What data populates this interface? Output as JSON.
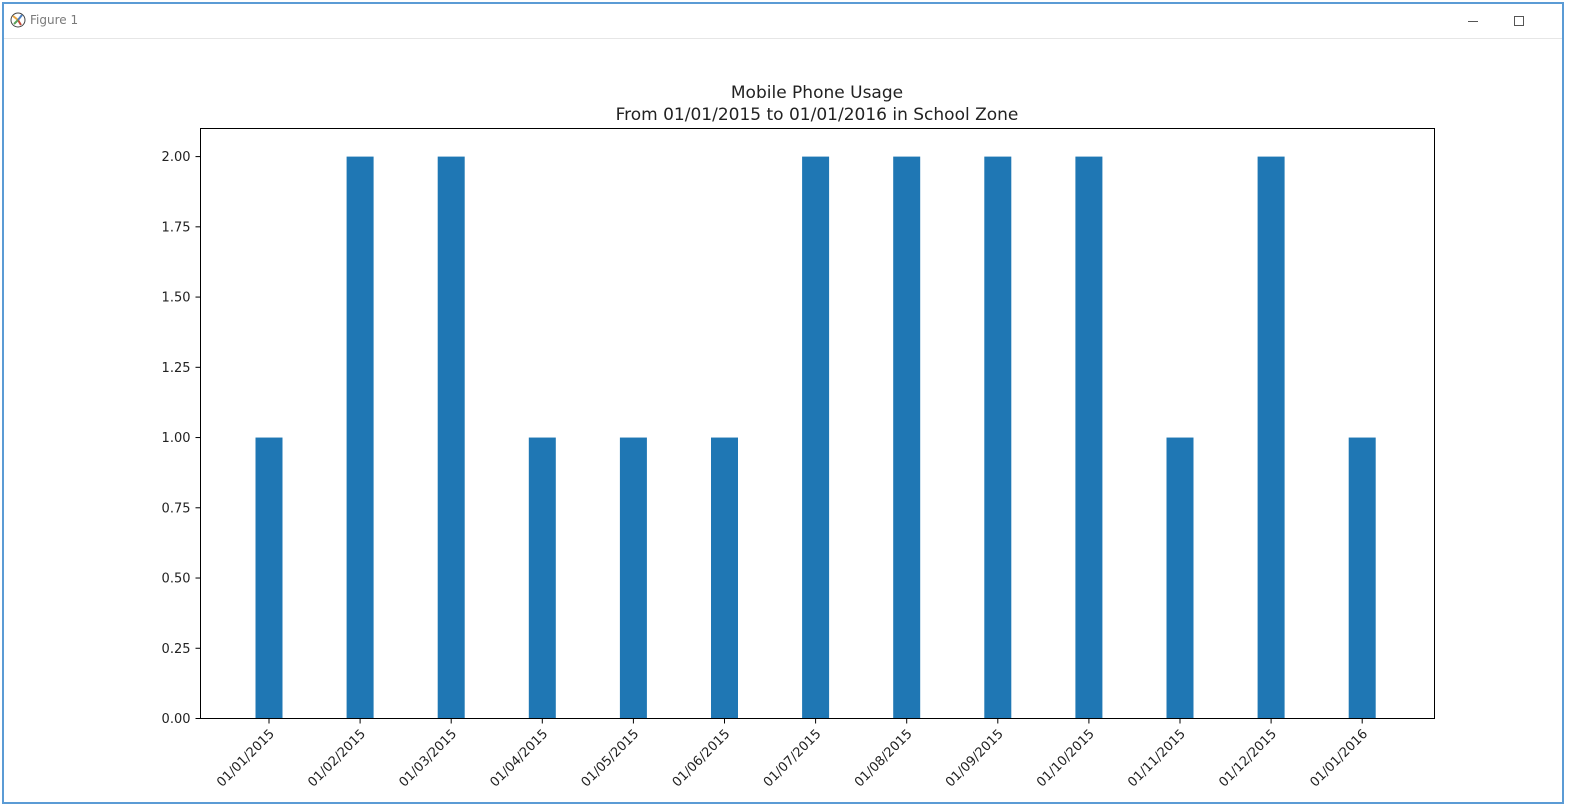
{
  "window": {
    "title": "Figure 1",
    "icons": {
      "app": "matplotlib-figure-icon",
      "minimize": "minimize-icon",
      "maximize": "maximize-icon"
    }
  },
  "chart_data": {
    "type": "bar",
    "title": "Mobile Phone Usage",
    "subtitle": "From 01/01/2015 to 01/01/2016 in School Zone",
    "xlabel": "",
    "ylabel": "",
    "categories": [
      "01/01/2015",
      "01/02/2015",
      "01/03/2015",
      "01/04/2015",
      "01/05/2015",
      "01/06/2015",
      "01/07/2015",
      "01/08/2015",
      "01/09/2015",
      "01/10/2015",
      "01/11/2015",
      "01/12/2015",
      "01/01/2016"
    ],
    "values": [
      1,
      2,
      2,
      1,
      1,
      1,
      2,
      2,
      2,
      2,
      1,
      2,
      1
    ],
    "ylim": [
      0,
      2.1
    ],
    "yticks": [
      "0.00",
      "0.25",
      "0.50",
      "0.75",
      "1.00",
      "1.25",
      "1.50",
      "1.75",
      "2.00"
    ],
    "bar_color": "#1f77b4",
    "grid": false,
    "legend": "none"
  }
}
